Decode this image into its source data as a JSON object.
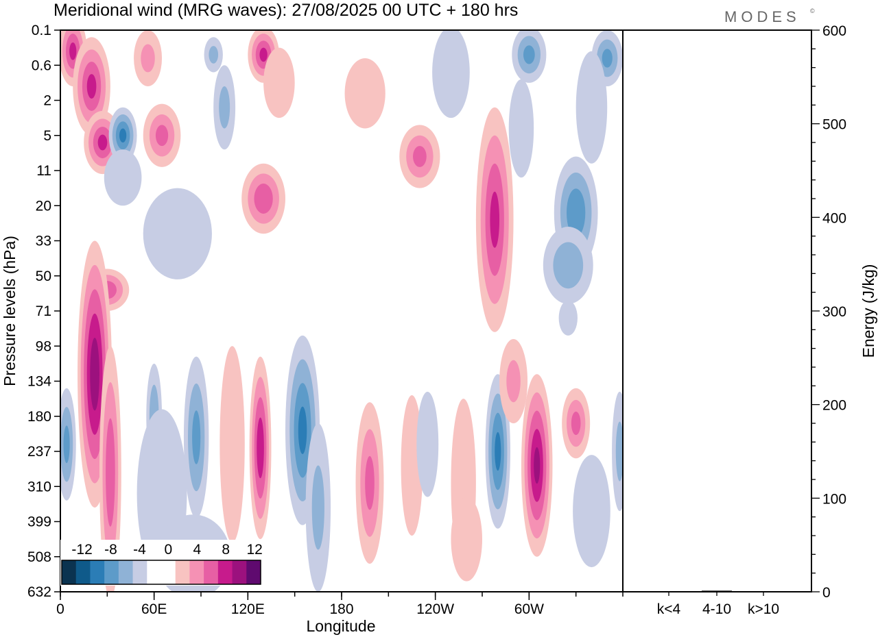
{
  "chart_data": {
    "type": "heatmap",
    "title": "Meridional wind (MRG waves):  27/08/2025  00 UTC  + 180 hrs",
    "brand": "MODES",
    "brand_mark": "©",
    "xlabel": "Longitude",
    "ylabel": "Pressure levels (hPa)",
    "x_ticks": [
      "0",
      "60E",
      "120E",
      "180",
      "120W",
      "60W"
    ],
    "x_tick_lon": [
      0,
      60,
      120,
      180,
      240,
      300
    ],
    "xlim": [
      0,
      360
    ],
    "y_ticks": [
      "0.1",
      "0.6",
      "2",
      "5",
      "11",
      "20",
      "33",
      "50",
      "71",
      "98",
      "134",
      "180",
      "237",
      "310",
      "399",
      "508",
      "632"
    ],
    "colorbar": {
      "labels": [
        "-12",
        "-8",
        "-4",
        "0",
        "4",
        "8",
        "12"
      ],
      "colors": [
        "#0b3350",
        "#0f5a8a",
        "#2b7db6",
        "#5d9bc9",
        "#8fb2d6",
        "#c7cde4",
        "#ffffff",
        "#ffffff",
        "#f8c3c1",
        "#f591b4",
        "#e75fa4",
        "#c71b8c",
        "#9c117e",
        "#5f0a6f"
      ]
    },
    "contours": [
      {
        "lon": 8,
        "lev": 0.6,
        "w": 9,
        "h": 1.0,
        "v": 8
      },
      {
        "lon": 20,
        "lev": 1.6,
        "w": 12,
        "h": 1.4,
        "v": 8
      },
      {
        "lon": 27,
        "lev": 3.2,
        "w": 12,
        "h": 0.9,
        "v": 8
      },
      {
        "lon": 40,
        "lev": 3.0,
        "w": 9,
        "h": 0.8,
        "v": -8
      },
      {
        "lon": 65,
        "lev": 3.0,
        "w": 12,
        "h": 0.9,
        "v": 6
      },
      {
        "lon": 56,
        "lev": 0.8,
        "w": 9,
        "h": 0.8,
        "v": 4
      },
      {
        "lon": 98,
        "lev": 0.7,
        "w": 6,
        "h": 0.5,
        "v": -4
      },
      {
        "lon": 130,
        "lev": 0.7,
        "w": 10,
        "h": 0.8,
        "v": 8
      },
      {
        "lon": 140,
        "lev": 1.5,
        "w": 10,
        "h": 1.0,
        "v": 3
      },
      {
        "lon": 105,
        "lev": 2.2,
        "w": 7,
        "h": 1.2,
        "v": -4
      },
      {
        "lon": 195,
        "lev": 1.8,
        "w": 13,
        "h": 1.0,
        "v": 3
      },
      {
        "lon": 230,
        "lev": 3.6,
        "w": 13,
        "h": 0.9,
        "v": 6
      },
      {
        "lon": 250,
        "lev": 1.2,
        "w": 12,
        "h": 1.3,
        "v": -3
      },
      {
        "lon": 300,
        "lev": 0.7,
        "w": 11,
        "h": 0.8,
        "v": -6
      },
      {
        "lon": 350,
        "lev": 0.8,
        "w": 10,
        "h": 0.8,
        "v": -6
      },
      {
        "lon": 295,
        "lev": 2.8,
        "w": 8,
        "h": 1.4,
        "v": -3
      },
      {
        "lon": 340,
        "lev": 2.2,
        "w": 10,
        "h": 1.6,
        "v": -3
      },
      {
        "lon": 130,
        "lev": 4.8,
        "w": 14,
        "h": 1.0,
        "v": 7
      },
      {
        "lon": 75,
        "lev": 5.8,
        "w": 22,
        "h": 1.3,
        "v": -3
      },
      {
        "lon": 40,
        "lev": 4.2,
        "w": 12,
        "h": 0.8,
        "v": -3
      },
      {
        "lon": 278,
        "lev": 5.4,
        "w": 12,
        "h": 3.2,
        "v": 8
      },
      {
        "lon": 330,
        "lev": 5.2,
        "w": 14,
        "h": 1.6,
        "v": -7
      },
      {
        "lon": 325,
        "lev": 6.7,
        "w": 16,
        "h": 1.1,
        "v": -5
      },
      {
        "lon": 30,
        "lev": 7.4,
        "w": 14,
        "h": 0.6,
        "v": 7
      },
      {
        "lon": 325,
        "lev": 8.2,
        "w": 6,
        "h": 0.5,
        "v": -3
      },
      {
        "lon": 22,
        "lev": 9.8,
        "w": 11,
        "h": 3.8,
        "v": 11
      },
      {
        "lon": 32,
        "lev": 12.6,
        "w": 7,
        "h": 3.6,
        "v": 7
      },
      {
        "lon": 4,
        "lev": 11.8,
        "w": 6,
        "h": 1.6,
        "v": -6
      },
      {
        "lon": 60,
        "lev": 11.0,
        "w": 5,
        "h": 1.5,
        "v": -5
      },
      {
        "lon": 87,
        "lev": 11.6,
        "w": 8,
        "h": 2.3,
        "v": -6
      },
      {
        "lon": 65,
        "lev": 13.2,
        "w": 16,
        "h": 2.4,
        "v": -3
      },
      {
        "lon": 110,
        "lev": 11.8,
        "w": 8,
        "h": 2.8,
        "v": 3
      },
      {
        "lon": 128,
        "lev": 11.9,
        "w": 7,
        "h": 2.6,
        "v": 9
      },
      {
        "lon": 155,
        "lev": 11.4,
        "w": 11,
        "h": 2.7,
        "v": -8
      },
      {
        "lon": 165,
        "lev": 13.6,
        "w": 8,
        "h": 2.4,
        "v": -4
      },
      {
        "lon": 198,
        "lev": 12.9,
        "w": 9,
        "h": 2.3,
        "v": 6
      },
      {
        "lon": 225,
        "lev": 12.4,
        "w": 7,
        "h": 2.0,
        "v": 3
      },
      {
        "lon": 258,
        "lev": 12.9,
        "w": 8,
        "h": 2.4,
        "v": 3
      },
      {
        "lon": 235,
        "lev": 11.8,
        "w": 7,
        "h": 1.5,
        "v": -3
      },
      {
        "lon": 280,
        "lev": 12.0,
        "w": 8,
        "h": 2.2,
        "v": -8
      },
      {
        "lon": 305,
        "lev": 12.4,
        "w": 10,
        "h": 2.6,
        "v": 10
      },
      {
        "lon": 290,
        "lev": 10.0,
        "w": 9,
        "h": 1.2,
        "v": 4
      },
      {
        "lon": 330,
        "lev": 11.2,
        "w": 9,
        "h": 1.0,
        "v": 6
      },
      {
        "lon": 358,
        "lev": 12.0,
        "w": 5,
        "h": 1.7,
        "v": -4
      },
      {
        "lon": 340,
        "lev": 13.7,
        "w": 12,
        "h": 1.6,
        "v": -3
      },
      {
        "lon": 260,
        "lev": 14.5,
        "w": 10,
        "h": 1.2,
        "v": 3
      },
      {
        "lon": 85,
        "lev": 15.0,
        "w": 24,
        "h": 1.2,
        "v": -3
      }
    ],
    "energy_axis": {
      "label": "Energy (J/kg)",
      "ticks": [
        "0",
        "100",
        "200",
        "300",
        "400",
        "500",
        "600"
      ],
      "ylim": [
        0,
        600
      ],
      "categories": [
        "k<4",
        "4-10",
        "k>10"
      ],
      "values": [
        0.3,
        1.2,
        0.2
      ]
    }
  }
}
